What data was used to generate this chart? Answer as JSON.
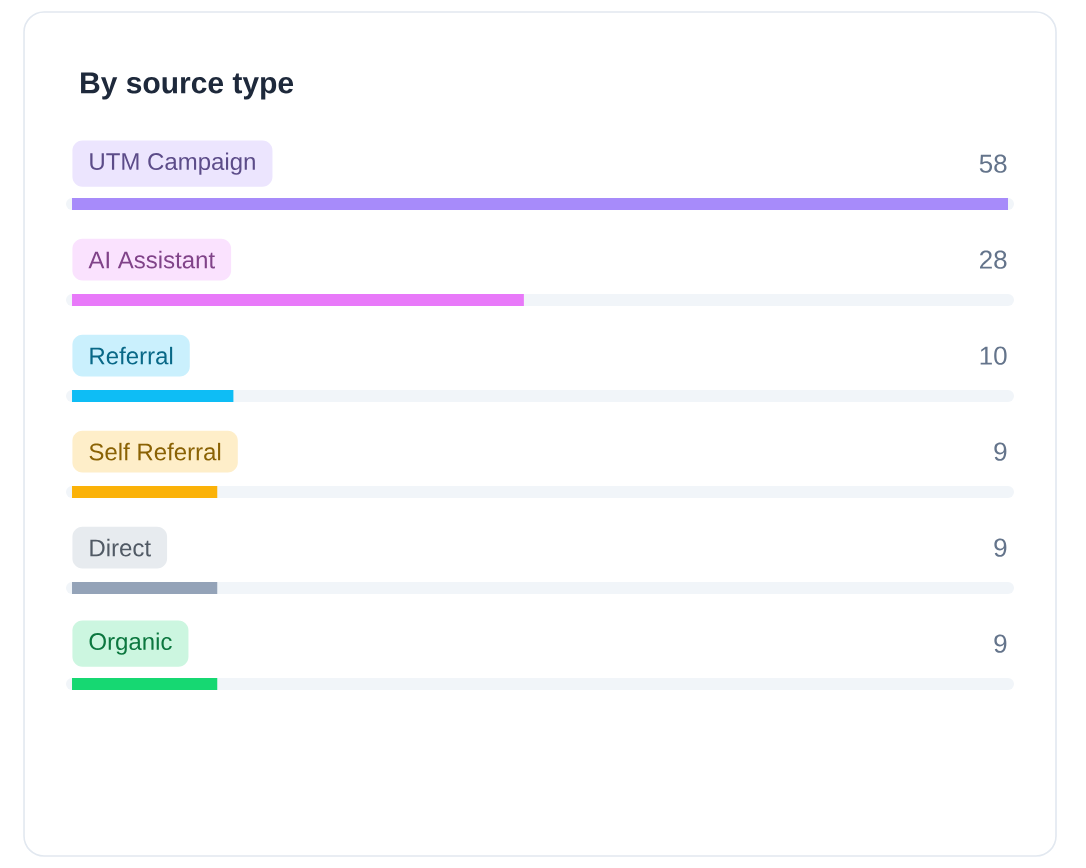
{
  "chart_data": {
    "type": "bar",
    "orientation": "horizontal",
    "title": "By source type",
    "categories": [
      "UTM Campaign",
      "AI Assistant",
      "Referral",
      "Self Referral",
      "Direct",
      "Organic"
    ],
    "values": [
      58,
      28,
      10,
      9,
      9,
      9
    ],
    "colors": [
      "#a78bfa",
      "#e879f9",
      "#0ebdf5",
      "#fbb208",
      "#94a3b8",
      "#16d872"
    ],
    "data_labels": true
  }
}
